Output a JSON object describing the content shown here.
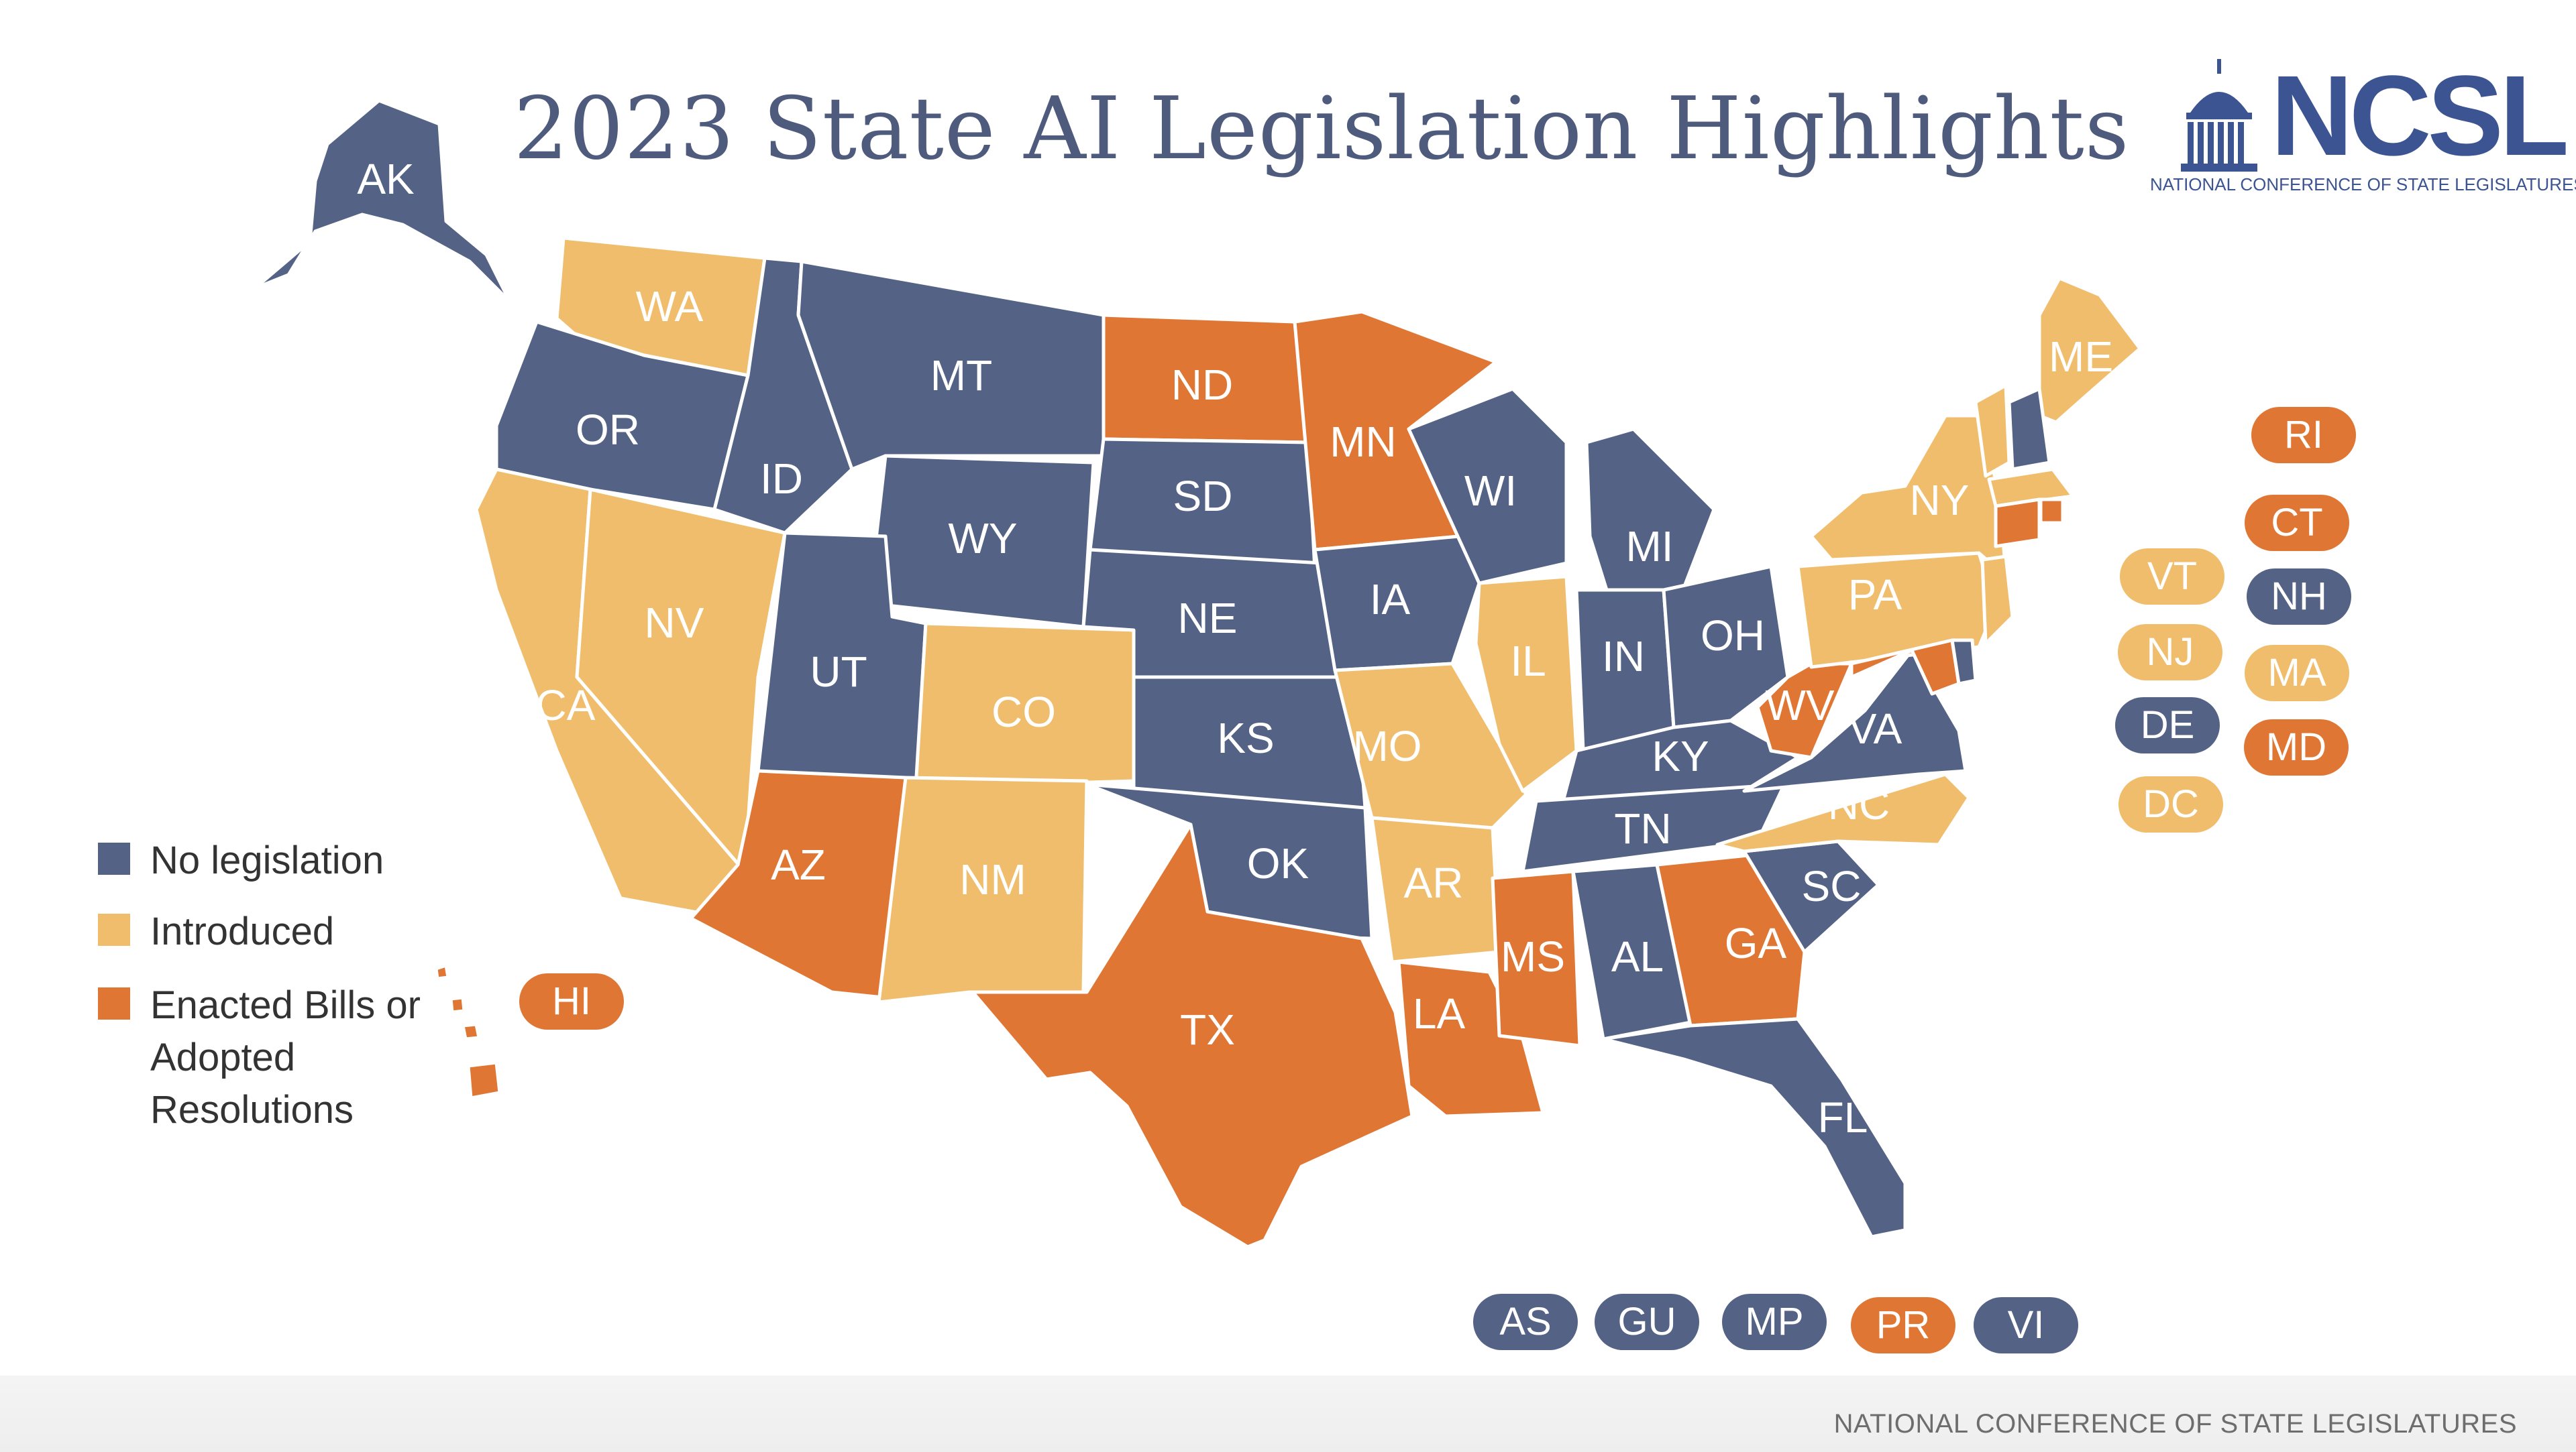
{
  "title": "2023 State AI Legislation Highlights",
  "logo": {
    "wordmark": "NCSL",
    "subtitle": "NATIONAL CONFERENCE OF STATE LEGISLATURES",
    "icon": "capitol-dome-icon"
  },
  "footer": "NATIONAL CONFERENCE OF STATE LEGISLATURES",
  "colors": {
    "none": "#546385",
    "introduced": "#f0bd6c",
    "enacted": "#e07634"
  },
  "legend": [
    {
      "status": "none",
      "label": "No legislation"
    },
    {
      "status": "introduced",
      "label": "Introduced"
    },
    {
      "status": "enacted",
      "label": "Enacted Bills or Adopted Resolutions"
    }
  ],
  "states": [
    {
      "code": "AK",
      "status": "none"
    },
    {
      "code": "WA",
      "status": "introduced"
    },
    {
      "code": "OR",
      "status": "none"
    },
    {
      "code": "CA",
      "status": "introduced"
    },
    {
      "code": "NV",
      "status": "introduced"
    },
    {
      "code": "ID",
      "status": "none"
    },
    {
      "code": "MT",
      "status": "none"
    },
    {
      "code": "WY",
      "status": "none"
    },
    {
      "code": "UT",
      "status": "none"
    },
    {
      "code": "CO",
      "status": "introduced"
    },
    {
      "code": "AZ",
      "status": "enacted"
    },
    {
      "code": "NM",
      "status": "introduced"
    },
    {
      "code": "ND",
      "status": "enacted"
    },
    {
      "code": "SD",
      "status": "none"
    },
    {
      "code": "NE",
      "status": "none"
    },
    {
      "code": "KS",
      "status": "none"
    },
    {
      "code": "OK",
      "status": "none"
    },
    {
      "code": "TX",
      "status": "enacted"
    },
    {
      "code": "MN",
      "status": "enacted"
    },
    {
      "code": "IA",
      "status": "none"
    },
    {
      "code": "MO",
      "status": "introduced"
    },
    {
      "code": "AR",
      "status": "introduced"
    },
    {
      "code": "LA",
      "status": "enacted"
    },
    {
      "code": "WI",
      "status": "none"
    },
    {
      "code": "IL",
      "status": "introduced"
    },
    {
      "code": "MI",
      "status": "none"
    },
    {
      "code": "IN",
      "status": "none"
    },
    {
      "code": "OH",
      "status": "none"
    },
    {
      "code": "KY",
      "status": "none"
    },
    {
      "code": "TN",
      "status": "none"
    },
    {
      "code": "MS",
      "status": "enacted"
    },
    {
      "code": "AL",
      "status": "none"
    },
    {
      "code": "GA",
      "status": "enacted"
    },
    {
      "code": "FL",
      "status": "none"
    },
    {
      "code": "SC",
      "status": "none"
    },
    {
      "code": "NC",
      "status": "introduced"
    },
    {
      "code": "VA",
      "status": "none"
    },
    {
      "code": "WV",
      "status": "enacted"
    },
    {
      "code": "PA",
      "status": "introduced"
    },
    {
      "code": "NY",
      "status": "introduced"
    },
    {
      "code": "ME",
      "status": "introduced"
    }
  ],
  "badges": [
    {
      "code": "HI",
      "status": "enacted"
    },
    {
      "code": "RI",
      "status": "enacted"
    },
    {
      "code": "CT",
      "status": "enacted"
    },
    {
      "code": "VT",
      "status": "introduced"
    },
    {
      "code": "NH",
      "status": "none"
    },
    {
      "code": "NJ",
      "status": "introduced"
    },
    {
      "code": "MA",
      "status": "introduced"
    },
    {
      "code": "DE",
      "status": "none"
    },
    {
      "code": "MD",
      "status": "enacted"
    },
    {
      "code": "DC",
      "status": "introduced"
    },
    {
      "code": "AS",
      "status": "none"
    },
    {
      "code": "GU",
      "status": "none"
    },
    {
      "code": "MP",
      "status": "none"
    },
    {
      "code": "PR",
      "status": "enacted"
    },
    {
      "code": "VI",
      "status": "none"
    }
  ]
}
